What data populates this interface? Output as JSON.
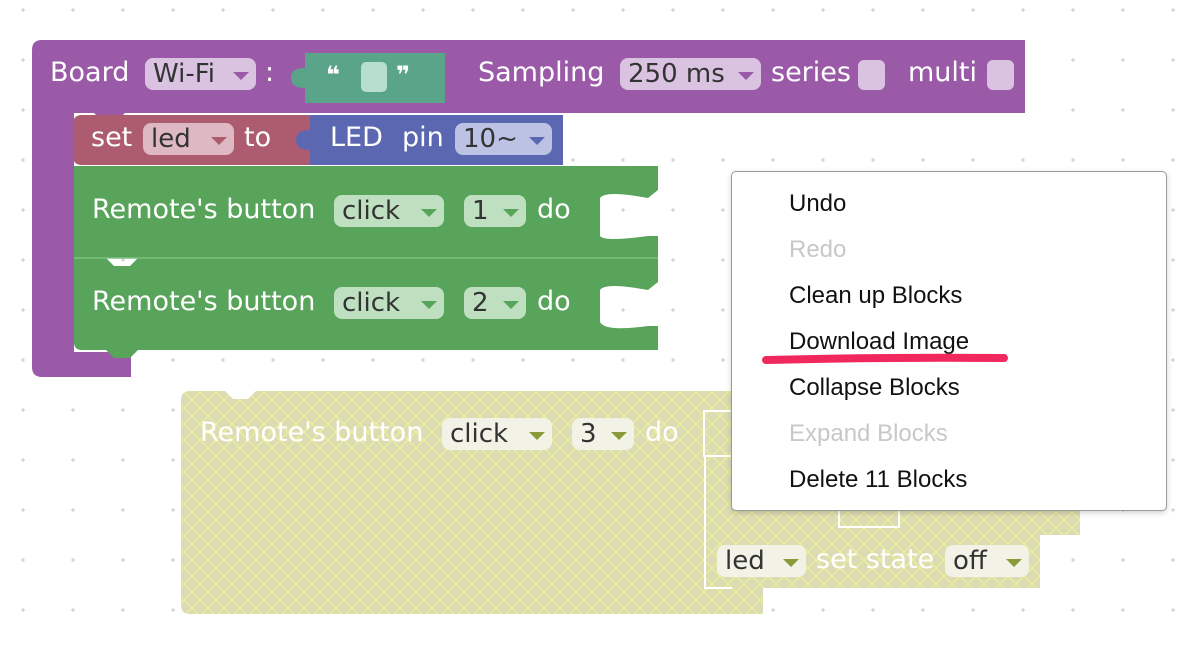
{
  "workspace": {
    "board_block": {
      "label": "Board",
      "connection": "Wi-Fi",
      "colon": ":",
      "quote_open": "❝",
      "quote_close": "❞",
      "sampling_label": "Sampling",
      "sampling_value": "250 ms",
      "series_label": "series",
      "multi_label": "multi"
    },
    "set_block": {
      "set_label": "set",
      "variable": "led",
      "to_label": "to",
      "led_label": "LED",
      "pin_label": "pin",
      "pin_value": "10~"
    },
    "remote_blocks": [
      {
        "label": "Remote's button",
        "event": "click",
        "button": "1",
        "do_label": "do"
      },
      {
        "label": "Remote's button",
        "event": "click",
        "button": "2",
        "do_label": "do"
      }
    ],
    "disabled_block": {
      "label": "Remote's button",
      "event": "click",
      "button": "3",
      "do_label": "do",
      "inner_var": "led",
      "set_state_label": "set state",
      "state_value": "off"
    }
  },
  "context_menu": {
    "items": [
      {
        "label": "Undo",
        "enabled": true
      },
      {
        "label": "Redo",
        "enabled": false
      },
      {
        "label": "Clean up Blocks",
        "enabled": true
      },
      {
        "label": "Download Image",
        "enabled": true
      },
      {
        "label": "Collapse Blocks",
        "enabled": true
      },
      {
        "label": "Expand Blocks",
        "enabled": false
      },
      {
        "label": "Delete 11 Blocks",
        "enabled": true
      }
    ],
    "highlight_color": "#f0285e"
  },
  "colors": {
    "board_purple": "#9b5aa8",
    "set_red": "#ad5c6f",
    "led_blue": "#5b68b1",
    "quote_teal": "#5aa58a",
    "remote_green": "#58a45b",
    "disabled_fill": "#dcdcb4"
  }
}
